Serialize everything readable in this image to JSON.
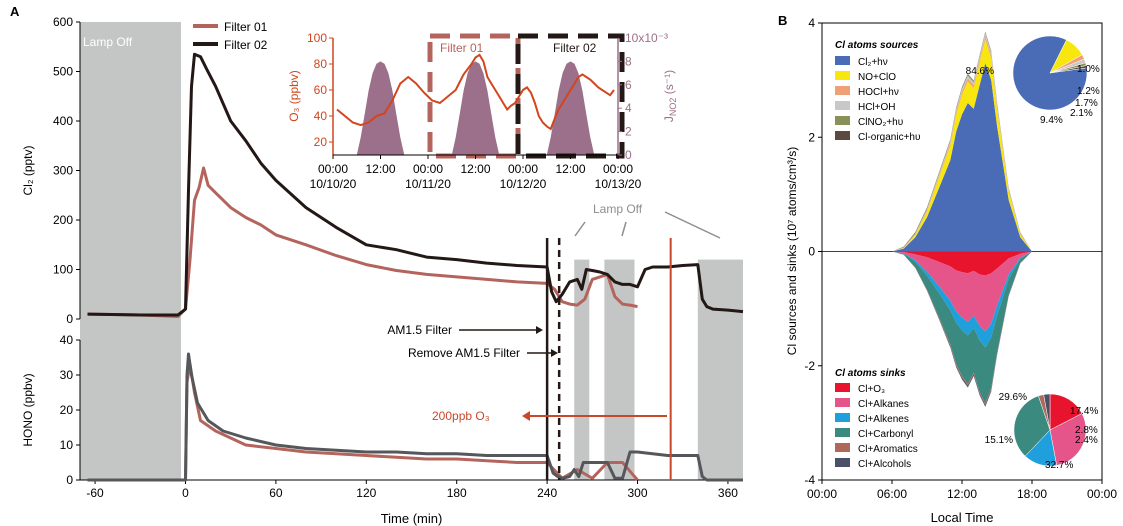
{
  "panels": {
    "a": "A",
    "b": "B"
  },
  "colors": {
    "filter01": "#b5645d",
    "filter02": "#231815",
    "hono_grey": "#55575b",
    "ozone": "#d2461e",
    "jno2": "#9c6f8a",
    "lamp_off": "#c4c6c6",
    "o3_marker": "#c9482a"
  },
  "chart_data": [
    {
      "type": "line",
      "title": "",
      "xlabel": "",
      "ylabel": "Cl₂ (pptv)",
      "xlim": [
        -70,
        370
      ],
      "ylim": [
        0,
        600
      ],
      "y_ticks": [
        "0",
        "100",
        "200",
        "300",
        "400",
        "500",
        "600"
      ],
      "legend_position": "top",
      "series": [
        {
          "name": "Filter 01",
          "color": "#b5645d",
          "x": [
            -65,
            -30,
            -5,
            0,
            3,
            6,
            9,
            12,
            15,
            20,
            30,
            40,
            50,
            60,
            80,
            100,
            120,
            140,
            160,
            180,
            200,
            220,
            240,
            245,
            250,
            255,
            260,
            265,
            270,
            275,
            280,
            285,
            290,
            295,
            300
          ],
          "y": [
            10,
            8,
            5,
            20,
            120,
            240,
            265,
            305,
            270,
            255,
            225,
            205,
            190,
            170,
            150,
            128,
            110,
            98,
            90,
            85,
            80,
            75,
            72,
            60,
            35,
            30,
            28,
            40,
            80,
            85,
            90,
            45,
            30,
            28,
            25
          ]
        },
        {
          "name": "Filter 02",
          "color": "#231815",
          "x": [
            -65,
            -30,
            -5,
            0,
            2,
            4,
            6,
            10,
            14,
            20,
            30,
            40,
            50,
            60,
            80,
            100,
            120,
            140,
            160,
            180,
            200,
            220,
            240,
            243,
            246,
            250,
            255,
            260,
            263,
            266,
            270,
            275,
            280,
            285,
            290,
            295,
            300,
            305,
            310,
            320,
            330,
            340,
            343,
            346,
            350,
            360,
            370
          ],
          "y": [
            10,
            8,
            8,
            20,
            260,
            470,
            535,
            530,
            505,
            470,
            400,
            360,
            315,
            280,
            225,
            185,
            150,
            140,
            125,
            120,
            113,
            108,
            105,
            55,
            35,
            50,
            75,
            80,
            60,
            100,
            98,
            95,
            90,
            75,
            70,
            70,
            65,
            100,
            105,
            105,
            108,
            110,
            40,
            25,
            20,
            18,
            15
          ]
        }
      ]
    },
    {
      "type": "line",
      "title": "",
      "xlabel": "Time (min)",
      "ylabel": "HONO (ppbv)",
      "xlim": [
        -70,
        370
      ],
      "ylim": [
        0,
        40
      ],
      "x_ticks": [
        "-60",
        "0",
        "60",
        "120",
        "180",
        "240",
        "300",
        "360"
      ],
      "y_ticks": [
        "0",
        "10",
        "20",
        "30",
        "40"
      ],
      "series": [
        {
          "name": "Filter 01",
          "color": "#b5645d",
          "x": [
            -65,
            -5,
            0,
            1,
            3,
            6,
            10,
            20,
            30,
            40,
            60,
            80,
            100,
            120,
            140,
            160,
            180,
            200,
            220,
            240,
            250,
            260,
            270,
            280,
            290,
            300
          ],
          "y": [
            0,
            0,
            0,
            28,
            33,
            25,
            17,
            14,
            12,
            10,
            9,
            8,
            7.5,
            7,
            6.5,
            6,
            6,
            5.5,
            5,
            5,
            0.5,
            3,
            0.5,
            5,
            5,
            0
          ]
        },
        {
          "name": "Filter 02",
          "color": "#55575b",
          "x": [
            -65,
            -5,
            0,
            1,
            2,
            4,
            8,
            15,
            25,
            40,
            60,
            80,
            100,
            120,
            140,
            160,
            180,
            200,
            220,
            240,
            244,
            247,
            250,
            255,
            258,
            261,
            264,
            268,
            280,
            285,
            290,
            295,
            298,
            300,
            310,
            320,
            330,
            340,
            343,
            346,
            350,
            360,
            370
          ],
          "y": [
            0,
            0,
            0,
            30,
            36,
            30,
            22,
            17,
            14,
            12,
            10,
            9,
            8.5,
            8,
            8,
            7.5,
            7.5,
            7,
            7,
            7,
            2,
            1,
            0.5,
            1,
            3,
            1,
            5,
            5,
            5,
            0.5,
            0.5,
            8,
            8,
            8,
            7.5,
            7,
            7,
            7,
            1,
            0,
            0,
            0,
            0
          ]
        }
      ]
    },
    {
      "type": "line",
      "title": "",
      "xlabel": "",
      "ylabel": "O₃ (ppbv)",
      "ylabel_right": "J",
      "ylabel_right_sub": "NO2",
      "ylabel_right_unit": " (s⁻¹)",
      "right_axis_multiplier": "10x10⁻³",
      "xlim": [
        0,
        72
      ],
      "ylim": [
        10,
        100
      ],
      "ylim_right": [
        0,
        10
      ],
      "x_ticks": [
        "00:00",
        "12:00",
        "00:00",
        "12:00",
        "00:00",
        "12:00",
        "00:00"
      ],
      "x_dates": [
        "10/10/20",
        "10/11/20",
        "10/12/20",
        "10/13/20"
      ],
      "y_ticks": [
        "20",
        "40",
        "60",
        "80",
        "100"
      ],
      "y_ticks_right": [
        "0",
        "2",
        "4",
        "6",
        "8"
      ],
      "series": [
        {
          "name": "O₃",
          "color": "#d2461e",
          "x": [
            1,
            3,
            5,
            7,
            9,
            11,
            13,
            14,
            15,
            17,
            19,
            21,
            23,
            24,
            25,
            27,
            29,
            31,
            33,
            35,
            36,
            37,
            38,
            39,
            40,
            41,
            42,
            43,
            44,
            45,
            46,
            47,
            48,
            49,
            50,
            51,
            52,
            53,
            54,
            55,
            56,
            57,
            58,
            59,
            60,
            61,
            62,
            63,
            64,
            65,
            66,
            67,
            68,
            69,
            70,
            71
          ],
          "y": [
            45,
            40,
            35,
            33,
            35,
            40,
            42,
            47,
            52,
            65,
            70,
            65,
            58,
            55,
            52,
            50,
            55,
            60,
            72,
            80,
            85,
            87,
            82,
            70,
            65,
            60,
            55,
            50,
            45,
            48,
            50,
            55,
            60,
            62,
            58,
            50,
            40,
            35,
            32,
            30,
            38,
            45,
            50,
            55,
            60,
            65,
            70,
            72,
            70,
            68,
            65,
            62,
            60,
            58,
            56,
            60
          ]
        },
        {
          "name": "J_NO2",
          "color": "#9c6f8a",
          "type": "area",
          "x": [
            6,
            7,
            8,
            9,
            10,
            11,
            12,
            13,
            14,
            15,
            16,
            17,
            18,
            30,
            31,
            32,
            33,
            34,
            35,
            36,
            37,
            38,
            39,
            40,
            41,
            42,
            54,
            55,
            56,
            57,
            58,
            59,
            60,
            61,
            62,
            63,
            64,
            65,
            66
          ],
          "y": [
            0,
            1.5,
            3.5,
            5.5,
            7,
            7.8,
            8,
            7.8,
            7,
            5.5,
            3.5,
            1.5,
            0,
            0,
            1.5,
            3.5,
            5.5,
            7,
            7.8,
            8,
            7.8,
            7,
            5.5,
            3.5,
            1.5,
            0,
            0,
            1.5,
            3.5,
            5.5,
            7,
            7.8,
            8,
            7.8,
            7,
            5.5,
            3.5,
            1.5,
            0
          ]
        }
      ],
      "labels": [
        "Filter 01",
        "Filter 02"
      ]
    },
    {
      "type": "area",
      "title": "",
      "xlabel": "Local Time",
      "ylabel": "Cl sources and sinks (10⁷ atoms/cm³/s)",
      "xlim": [
        0,
        24
      ],
      "ylim": [
        -4,
        4
      ],
      "x_ticks": [
        "00:00",
        "06:00",
        "12:00",
        "18:00",
        "00:00"
      ],
      "y_ticks": [
        "-4",
        "-2",
        "0",
        "2",
        "4"
      ],
      "sources_title": "Cl atoms sources",
      "sinks_title": "Cl atoms sinks",
      "x": [
        6,
        7,
        8,
        9,
        10,
        11,
        11.5,
        12,
        12.5,
        13,
        13.5,
        14,
        14.5,
        15,
        16,
        17,
        18
      ],
      "sources": [
        {
          "name": "Cl₂+hν",
          "color": "#4a6bb5",
          "values": [
            0,
            0.05,
            0.25,
            0.6,
            1.1,
            1.6,
            2.1,
            2.4,
            2.6,
            2.5,
            2.9,
            3.3,
            3.0,
            2.2,
            0.9,
            0.25,
            0
          ]
        },
        {
          "name": "NO+ClO",
          "color": "#f7e70f",
          "values": [
            0,
            0.01,
            0.04,
            0.1,
            0.18,
            0.25,
            0.3,
            0.35,
            0.38,
            0.36,
            0.4,
            0.42,
            0.38,
            0.3,
            0.15,
            0.05,
            0
          ]
        },
        {
          "name": "HOCl+hν",
          "color": "#f0a078",
          "values": [
            0,
            0.005,
            0.01,
            0.02,
            0.03,
            0.04,
            0.05,
            0.05,
            0.05,
            0.05,
            0.05,
            0.05,
            0.05,
            0.04,
            0.02,
            0.01,
            0
          ]
        },
        {
          "name": "HCl+OH",
          "color": "#c8c8c8",
          "values": [
            0,
            0.005,
            0.01,
            0.02,
            0.03,
            0.04,
            0.04,
            0.05,
            0.05,
            0.05,
            0.05,
            0.05,
            0.05,
            0.04,
            0.02,
            0.01,
            0
          ]
        },
        {
          "name": "ClNO₂+hυ",
          "color": "#8a9158",
          "values": [
            0,
            0.01,
            0.02,
            0.02,
            0.02,
            0.02,
            0.02,
            0.02,
            0.02,
            0.02,
            0.02,
            0.02,
            0.02,
            0.02,
            0.01,
            0.01,
            0
          ]
        },
        {
          "name": "Cl-organic+hυ",
          "color": "#5a4a40",
          "values": [
            0,
            0.005,
            0.01,
            0.01,
            0.01,
            0.01,
            0.01,
            0.01,
            0.01,
            0.01,
            0.01,
            0.01,
            0.01,
            0.01,
            0.01,
            0.005,
            0
          ]
        }
      ],
      "sinks": [
        {
          "name": "Cl+O₃",
          "color": "#e8142e",
          "values": [
            0,
            0.01,
            0.05,
            0.1,
            0.18,
            0.26,
            0.33,
            0.36,
            0.38,
            0.34,
            0.4,
            0.42,
            0.38,
            0.3,
            0.12,
            0.04,
            0
          ]
        },
        {
          "name": "Cl+Alkanes",
          "color": "#e6558a",
          "values": [
            0,
            0.02,
            0.1,
            0.25,
            0.42,
            0.6,
            0.72,
            0.8,
            0.85,
            0.78,
            0.9,
            0.98,
            0.88,
            0.65,
            0.28,
            0.07,
            0
          ]
        },
        {
          "name": "Cl+Alkenes",
          "color": "#1fa0dc",
          "values": [
            0,
            0.005,
            0.03,
            0.07,
            0.12,
            0.17,
            0.2,
            0.22,
            0.24,
            0.22,
            0.25,
            0.28,
            0.25,
            0.18,
            0.08,
            0.02,
            0
          ]
        },
        {
          "name": "Cl+Carbonyl",
          "color": "#3a8a80",
          "values": [
            0,
            0.02,
            0.1,
            0.25,
            0.42,
            0.6,
            0.72,
            0.8,
            0.85,
            0.78,
            0.9,
            0.98,
            0.88,
            0.65,
            0.28,
            0.07,
            0
          ]
        },
        {
          "name": "Cl+Aromatics",
          "color": "#b0685a",
          "values": [
            0,
            0.002,
            0.005,
            0.01,
            0.02,
            0.03,
            0.03,
            0.03,
            0.03,
            0.03,
            0.03,
            0.03,
            0.03,
            0.02,
            0.01,
            0.005,
            0
          ]
        },
        {
          "name": "Cl+Alcohols",
          "color": "#4a5068",
          "values": [
            0,
            0.001,
            0.004,
            0.008,
            0.015,
            0.02,
            0.025,
            0.03,
            0.03,
            0.03,
            0.03,
            0.03,
            0.03,
            0.02,
            0.01,
            0.003,
            0
          ]
        }
      ],
      "pie_sources": [
        {
          "label": "84.6%",
          "value": 84.6,
          "color": "#4a6bb5"
        },
        {
          "label": "9.4%",
          "value": 9.4,
          "color": "#f7e70f"
        },
        {
          "label": "2.1%",
          "value": 2.1,
          "color": "#f0a078"
        },
        {
          "label": "1.7%",
          "value": 1.7,
          "color": "#c8c8c8"
        },
        {
          "label": "1.2%",
          "value": 1.2,
          "color": "#8a9158"
        },
        {
          "label": "1.0%",
          "value": 1.0,
          "color": "#5a4a40"
        }
      ],
      "pie_sinks": [
        {
          "label": "17.4%",
          "value": 17.4,
          "color": "#e8142e"
        },
        {
          "label": "29.6%",
          "value": 29.6,
          "color": "#e6558a"
        },
        {
          "label": "15.1%",
          "value": 15.1,
          "color": "#1fa0dc"
        },
        {
          "label": "32.7%",
          "value": 32.7,
          "color": "#3a8a80"
        },
        {
          "label": "2.4%",
          "value": 2.4,
          "color": "#b0685a"
        },
        {
          "label": "2.8%",
          "value": 2.8,
          "color": "#4a5068"
        }
      ]
    }
  ],
  "annotations": {
    "lamp_off_left": "Lamp Off",
    "lamp_off_right": "Lamp Off",
    "am15_filter": "AM1.5 Filter",
    "remove_am15": "Remove AM1.5 Filter",
    "ozone_200": "200ppb O₃",
    "lamp_off_periods": [
      [
        -70,
        -3
      ],
      [
        258,
        268
      ],
      [
        278,
        298
      ],
      [
        340,
        370
      ]
    ],
    "am15_at": 240,
    "remove_at": 248,
    "ozone_at": 322
  }
}
